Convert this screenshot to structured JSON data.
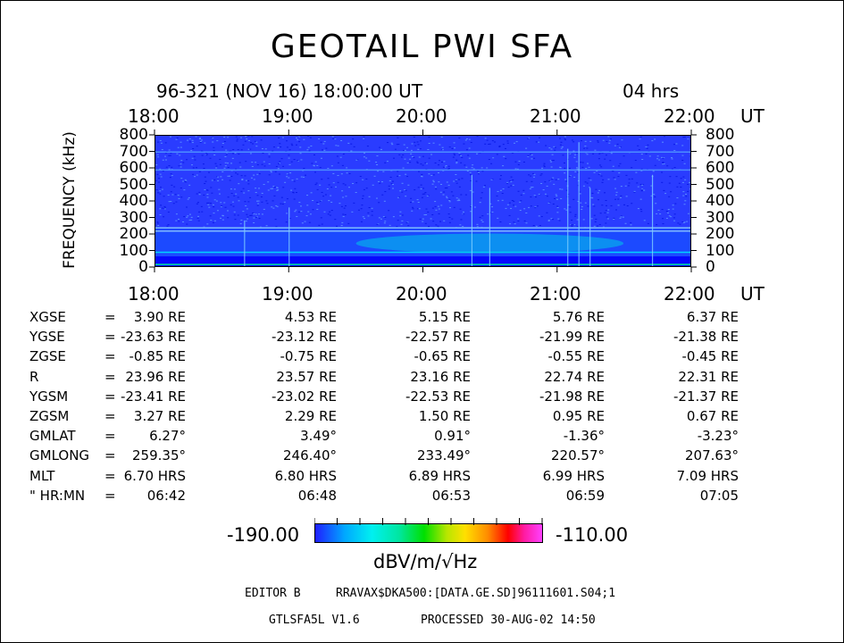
{
  "chart_data": {
    "type": "heatmap",
    "title": "GEOTAIL PWI SFA",
    "subtitle": "96-321 (NOV 16) 18:00:00 UT",
    "duration": "04 hrs",
    "x_tick_labels": [
      "18:00",
      "19:00",
      "20:00",
      "21:00",
      "22:00"
    ],
    "x_unit": "UT",
    "ylabel": "FREQUENCY (kHz)",
    "y_tick_labels": [
      "800",
      "700",
      "600",
      "500",
      "400",
      "300",
      "200",
      "100",
      "0"
    ],
    "ylim": [
      0,
      800
    ],
    "xlim": [
      "18:00",
      "22:00"
    ],
    "colorbar": {
      "min_label": "-190.00",
      "max_label": "-110.00",
      "unit": "dBV/m/√Hz",
      "range": [
        -190,
        -110
      ]
    },
    "colormap": [
      "#1f1fff",
      "#00a8ff",
      "#00f0f0",
      "#00e6a0",
      "#00e000",
      "#b8e600",
      "#ffe000",
      "#ff8c00",
      "#ff0000",
      "#ff1aa0",
      "#ff40ff"
    ],
    "background_color": "#2a3cff",
    "features": [
      {
        "kind": "band",
        "freq_range": [
          0,
          60
        ],
        "level": -175,
        "color": "#0000ff"
      },
      {
        "kind": "band",
        "freq_range": [
          60,
          240
        ],
        "level": -178,
        "color": "#1a4cff"
      },
      {
        "kind": "line",
        "freq": 10,
        "level": -155,
        "color": "#00e6a0"
      },
      {
        "kind": "line",
        "freq": 85,
        "level": -165,
        "color": "#00d0ff"
      },
      {
        "kind": "line",
        "freq": 215,
        "level": -168,
        "color": "#7fb8ff"
      },
      {
        "kind": "line",
        "freq": 235,
        "level": -168,
        "color": "#7fb8ff"
      },
      {
        "kind": "line",
        "freq": 590,
        "level": -170,
        "color": "#4c8cff"
      },
      {
        "kind": "line",
        "freq": 700,
        "level": -170,
        "color": "#4c8cff"
      },
      {
        "kind": "emission",
        "time_range": [
          "19:30",
          "21:30"
        ],
        "freq_range": [
          80,
          200
        ],
        "level": -160,
        "color": "#00c8e6"
      }
    ]
  },
  "ephemeris": {
    "labels": [
      "XGSE",
      "YGSE",
      "ZGSE",
      "R",
      "YGSM",
      "ZGSM",
      "GMLAT",
      "GMLONG",
      "MLT",
      "\" HR:MN"
    ],
    "equals": "=",
    "rows": [
      [
        "3.90 RE",
        "4.53 RE",
        "5.15 RE",
        "5.76 RE",
        "6.37 RE"
      ],
      [
        "-23.63 RE",
        "-23.12 RE",
        "-22.57 RE",
        "-21.99 RE",
        "-21.38 RE"
      ],
      [
        "-0.85 RE",
        "-0.75 RE",
        "-0.65 RE",
        "-0.55 RE",
        "-0.45 RE"
      ],
      [
        "23.96 RE",
        "23.57 RE",
        "23.16 RE",
        "22.74 RE",
        "22.31 RE"
      ],
      [
        "-23.41 RE",
        "-23.02 RE",
        "-22.53 RE",
        "-21.98 RE",
        "-21.37 RE"
      ],
      [
        "3.27 RE",
        "2.29 RE",
        "1.50 RE",
        "0.95 RE",
        "0.67 RE"
      ],
      [
        "6.27°",
        "3.49°",
        "0.91°",
        "-1.36°",
        "-3.23°"
      ],
      [
        "259.35°",
        "246.40°",
        "233.49°",
        "220.57°",
        "207.63°"
      ],
      [
        "6.70 HRS",
        "6.80 HRS",
        "6.89 HRS",
        "6.99 HRS",
        "7.09 HRS"
      ],
      [
        "06:42",
        "06:48",
        "06:53",
        "06:59",
        "07:05"
      ]
    ]
  },
  "footer": {
    "editor": "EDITOR B",
    "path": "RRAVAX$DKA500:[DATA.GE.SD]96111601.S04;1",
    "program": "GTLSFA5L V1.6",
    "processed": "PROCESSED 30-AUG-02  14:50"
  }
}
